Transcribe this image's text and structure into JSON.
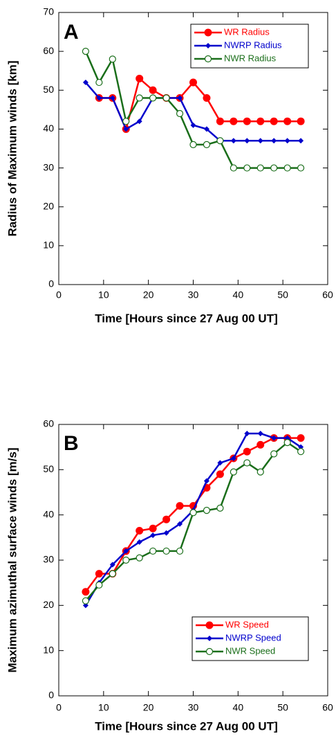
{
  "chart_data": [
    {
      "type": "line",
      "annotation": "A",
      "x_label": "Time [Hours since 27 Aug 00 UT]",
      "y_label": "Radius of Maximum winds [km]",
      "x": [
        6,
        9,
        12,
        15,
        18,
        21,
        24,
        27,
        30,
        33,
        36,
        39,
        42,
        45,
        48,
        51,
        54
      ],
      "series": [
        {
          "name": "WR Radius",
          "color": "#ff0000",
          "marker": "circle",
          "values": [
            null,
            48,
            48,
            40,
            53,
            50,
            48,
            48,
            52,
            48,
            42,
            42,
            42,
            42,
            42,
            42,
            42
          ]
        },
        {
          "name": "NWRP Radius",
          "color": "#0000cc",
          "marker": "diamond",
          "values": [
            52,
            48,
            48,
            40,
            42,
            48,
            48,
            48,
            41,
            40,
            37,
            37,
            37,
            37,
            37,
            37,
            37
          ]
        },
        {
          "name": "NWR Radius",
          "color": "#1a6e1a",
          "marker": "open-circle",
          "values": [
            60,
            52,
            58,
            42,
            48,
            48,
            48,
            44,
            36,
            36,
            37,
            30,
            30,
            30,
            30,
            30,
            30
          ]
        }
      ],
      "xlim": [
        0,
        60
      ],
      "xticks": [
        0,
        10,
        20,
        30,
        40,
        50,
        60
      ],
      "ylim": [
        0,
        70
      ],
      "yticks": [
        0,
        10,
        20,
        30,
        40,
        50,
        60,
        70
      ],
      "legend": "upper right"
    },
    {
      "type": "line",
      "annotation": "B",
      "x_label": "Time [Hours since 27 Aug 00 UT]",
      "y_label": "Maximum azimuthal surface winds [m/s]",
      "x": [
        6,
        9,
        12,
        15,
        18,
        21,
        24,
        27,
        30,
        33,
        36,
        39,
        42,
        45,
        48,
        51,
        54
      ],
      "series": [
        {
          "name": "WR Speed",
          "color": "#ff0000",
          "marker": "circle",
          "values": [
            23,
            27,
            27,
            32,
            36.5,
            37,
            39,
            42,
            42,
            46,
            49,
            52.5,
            54,
            55.5,
            57,
            57,
            57
          ]
        },
        {
          "name": "NWRP Speed",
          "color": "#0000cc",
          "marker": "diamond",
          "values": [
            20,
            25,
            29,
            32,
            34,
            35.5,
            36,
            38,
            41,
            47.5,
            51.5,
            52.5,
            58,
            58,
            57,
            57,
            55
          ]
        },
        {
          "name": "NWR Speed",
          "color": "#1a6e1a",
          "marker": "open-circle",
          "values": [
            21,
            24.5,
            27,
            30,
            30.5,
            32,
            32,
            32,
            40.5,
            41,
            41.5,
            49.5,
            51.5,
            49.5,
            53.5,
            56,
            54
          ]
        }
      ],
      "xlim": [
        0,
        60
      ],
      "xticks": [
        0,
        10,
        20,
        30,
        40,
        50,
        60
      ],
      "ylim": [
        0,
        60
      ],
      "yticks": [
        0,
        10,
        20,
        30,
        40,
        50,
        60
      ],
      "legend": "lower right"
    }
  ]
}
